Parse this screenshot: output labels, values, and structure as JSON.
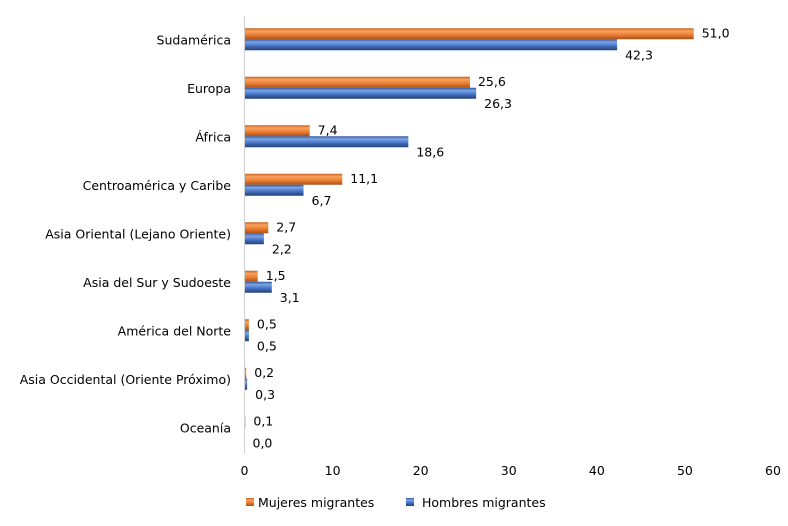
{
  "chart_data": {
    "type": "bar",
    "orientation": "horizontal",
    "categories": [
      "Sudamérica",
      "Europa",
      "África",
      "Centroamérica y Caribe",
      "Asia Oriental (Lejano Oriente)",
      "Asia del Sur y Sudoeste",
      "América del Norte",
      "Asia Occidental (Oriente Próximo)",
      "Oceanía"
    ],
    "series": [
      {
        "name": "Mujeres migrantes",
        "color": "#ED7D31",
        "values": [
          51.0,
          25.6,
          7.4,
          11.1,
          2.7,
          1.5,
          0.5,
          0.2,
          0.1
        ],
        "labels": [
          "51,0",
          "25,6",
          "7,4",
          "11,1",
          "2,7",
          "1,5",
          "0,5",
          "0,2",
          "0,1"
        ]
      },
      {
        "name": "Hombres migrantes",
        "color": "#4472C4",
        "values": [
          42.3,
          26.3,
          18.6,
          6.7,
          2.2,
          3.1,
          0.5,
          0.3,
          0.0
        ],
        "labels": [
          "42,3",
          "26,3",
          "18,6",
          "6,7",
          "2,2",
          "3,1",
          "0,5",
          "0,3",
          "0,0"
        ]
      }
    ],
    "xlim": [
      0,
      60
    ],
    "xticks": [
      "0",
      "10",
      "20",
      "30",
      "40",
      "50",
      "60"
    ],
    "grid": false,
    "legend": "bottom"
  }
}
